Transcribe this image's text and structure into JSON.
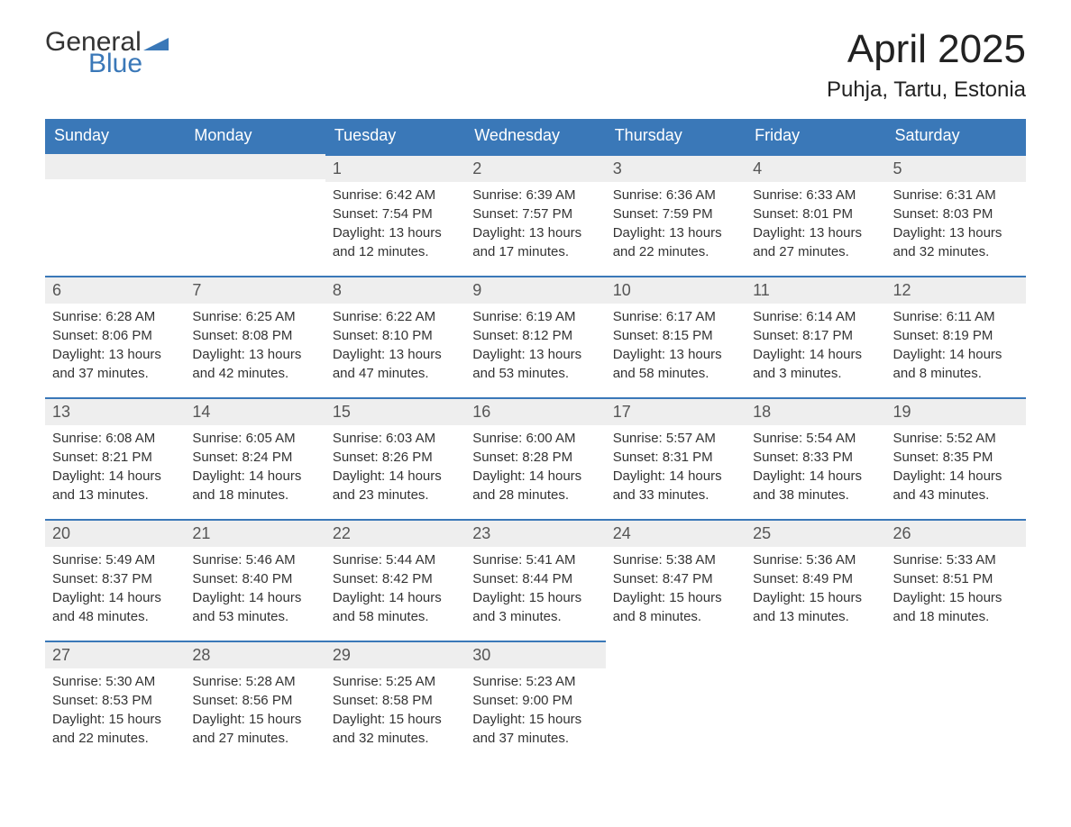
{
  "logo": {
    "text_general": "General",
    "text_blue": "Blue",
    "flag_color": "#3a78b8"
  },
  "title": {
    "month": "April 2025",
    "location": "Puhja, Tartu, Estonia"
  },
  "colors": {
    "header_bg": "#3a78b8",
    "header_text": "#ffffff",
    "daynum_bg": "#eeeeee",
    "daynum_border": "#3a78b8",
    "body_text": "#333333",
    "daynum_text": "#555555"
  },
  "day_headers": [
    "Sunday",
    "Monday",
    "Tuesday",
    "Wednesday",
    "Thursday",
    "Friday",
    "Saturday"
  ],
  "weeks": [
    [
      {
        "num": "",
        "sunrise": "",
        "sunset": "",
        "daylight1": "",
        "daylight2": ""
      },
      {
        "num": "",
        "sunrise": "",
        "sunset": "",
        "daylight1": "",
        "daylight2": ""
      },
      {
        "num": "1",
        "sunrise": "Sunrise: 6:42 AM",
        "sunset": "Sunset: 7:54 PM",
        "daylight1": "Daylight: 13 hours",
        "daylight2": "and 12 minutes."
      },
      {
        "num": "2",
        "sunrise": "Sunrise: 6:39 AM",
        "sunset": "Sunset: 7:57 PM",
        "daylight1": "Daylight: 13 hours",
        "daylight2": "and 17 minutes."
      },
      {
        "num": "3",
        "sunrise": "Sunrise: 6:36 AM",
        "sunset": "Sunset: 7:59 PM",
        "daylight1": "Daylight: 13 hours",
        "daylight2": "and 22 minutes."
      },
      {
        "num": "4",
        "sunrise": "Sunrise: 6:33 AM",
        "sunset": "Sunset: 8:01 PM",
        "daylight1": "Daylight: 13 hours",
        "daylight2": "and 27 minutes."
      },
      {
        "num": "5",
        "sunrise": "Sunrise: 6:31 AM",
        "sunset": "Sunset: 8:03 PM",
        "daylight1": "Daylight: 13 hours",
        "daylight2": "and 32 minutes."
      }
    ],
    [
      {
        "num": "6",
        "sunrise": "Sunrise: 6:28 AM",
        "sunset": "Sunset: 8:06 PM",
        "daylight1": "Daylight: 13 hours",
        "daylight2": "and 37 minutes."
      },
      {
        "num": "7",
        "sunrise": "Sunrise: 6:25 AM",
        "sunset": "Sunset: 8:08 PM",
        "daylight1": "Daylight: 13 hours",
        "daylight2": "and 42 minutes."
      },
      {
        "num": "8",
        "sunrise": "Sunrise: 6:22 AM",
        "sunset": "Sunset: 8:10 PM",
        "daylight1": "Daylight: 13 hours",
        "daylight2": "and 47 minutes."
      },
      {
        "num": "9",
        "sunrise": "Sunrise: 6:19 AM",
        "sunset": "Sunset: 8:12 PM",
        "daylight1": "Daylight: 13 hours",
        "daylight2": "and 53 minutes."
      },
      {
        "num": "10",
        "sunrise": "Sunrise: 6:17 AM",
        "sunset": "Sunset: 8:15 PM",
        "daylight1": "Daylight: 13 hours",
        "daylight2": "and 58 minutes."
      },
      {
        "num": "11",
        "sunrise": "Sunrise: 6:14 AM",
        "sunset": "Sunset: 8:17 PM",
        "daylight1": "Daylight: 14 hours",
        "daylight2": "and 3 minutes."
      },
      {
        "num": "12",
        "sunrise": "Sunrise: 6:11 AM",
        "sunset": "Sunset: 8:19 PM",
        "daylight1": "Daylight: 14 hours",
        "daylight2": "and 8 minutes."
      }
    ],
    [
      {
        "num": "13",
        "sunrise": "Sunrise: 6:08 AM",
        "sunset": "Sunset: 8:21 PM",
        "daylight1": "Daylight: 14 hours",
        "daylight2": "and 13 minutes."
      },
      {
        "num": "14",
        "sunrise": "Sunrise: 6:05 AM",
        "sunset": "Sunset: 8:24 PM",
        "daylight1": "Daylight: 14 hours",
        "daylight2": "and 18 minutes."
      },
      {
        "num": "15",
        "sunrise": "Sunrise: 6:03 AM",
        "sunset": "Sunset: 8:26 PM",
        "daylight1": "Daylight: 14 hours",
        "daylight2": "and 23 minutes."
      },
      {
        "num": "16",
        "sunrise": "Sunrise: 6:00 AM",
        "sunset": "Sunset: 8:28 PM",
        "daylight1": "Daylight: 14 hours",
        "daylight2": "and 28 minutes."
      },
      {
        "num": "17",
        "sunrise": "Sunrise: 5:57 AM",
        "sunset": "Sunset: 8:31 PM",
        "daylight1": "Daylight: 14 hours",
        "daylight2": "and 33 minutes."
      },
      {
        "num": "18",
        "sunrise": "Sunrise: 5:54 AM",
        "sunset": "Sunset: 8:33 PM",
        "daylight1": "Daylight: 14 hours",
        "daylight2": "and 38 minutes."
      },
      {
        "num": "19",
        "sunrise": "Sunrise: 5:52 AM",
        "sunset": "Sunset: 8:35 PM",
        "daylight1": "Daylight: 14 hours",
        "daylight2": "and 43 minutes."
      }
    ],
    [
      {
        "num": "20",
        "sunrise": "Sunrise: 5:49 AM",
        "sunset": "Sunset: 8:37 PM",
        "daylight1": "Daylight: 14 hours",
        "daylight2": "and 48 minutes."
      },
      {
        "num": "21",
        "sunrise": "Sunrise: 5:46 AM",
        "sunset": "Sunset: 8:40 PM",
        "daylight1": "Daylight: 14 hours",
        "daylight2": "and 53 minutes."
      },
      {
        "num": "22",
        "sunrise": "Sunrise: 5:44 AM",
        "sunset": "Sunset: 8:42 PM",
        "daylight1": "Daylight: 14 hours",
        "daylight2": "and 58 minutes."
      },
      {
        "num": "23",
        "sunrise": "Sunrise: 5:41 AM",
        "sunset": "Sunset: 8:44 PM",
        "daylight1": "Daylight: 15 hours",
        "daylight2": "and 3 minutes."
      },
      {
        "num": "24",
        "sunrise": "Sunrise: 5:38 AM",
        "sunset": "Sunset: 8:47 PM",
        "daylight1": "Daylight: 15 hours",
        "daylight2": "and 8 minutes."
      },
      {
        "num": "25",
        "sunrise": "Sunrise: 5:36 AM",
        "sunset": "Sunset: 8:49 PM",
        "daylight1": "Daylight: 15 hours",
        "daylight2": "and 13 minutes."
      },
      {
        "num": "26",
        "sunrise": "Sunrise: 5:33 AM",
        "sunset": "Sunset: 8:51 PM",
        "daylight1": "Daylight: 15 hours",
        "daylight2": "and 18 minutes."
      }
    ],
    [
      {
        "num": "27",
        "sunrise": "Sunrise: 5:30 AM",
        "sunset": "Sunset: 8:53 PM",
        "daylight1": "Daylight: 15 hours",
        "daylight2": "and 22 minutes."
      },
      {
        "num": "28",
        "sunrise": "Sunrise: 5:28 AM",
        "sunset": "Sunset: 8:56 PM",
        "daylight1": "Daylight: 15 hours",
        "daylight2": "and 27 minutes."
      },
      {
        "num": "29",
        "sunrise": "Sunrise: 5:25 AM",
        "sunset": "Sunset: 8:58 PM",
        "daylight1": "Daylight: 15 hours",
        "daylight2": "and 32 minutes."
      },
      {
        "num": "30",
        "sunrise": "Sunrise: 5:23 AM",
        "sunset": "Sunset: 9:00 PM",
        "daylight1": "Daylight: 15 hours",
        "daylight2": "and 37 minutes."
      },
      {
        "num": "",
        "sunrise": "",
        "sunset": "",
        "daylight1": "",
        "daylight2": ""
      },
      {
        "num": "",
        "sunrise": "",
        "sunset": "",
        "daylight1": "",
        "daylight2": ""
      },
      {
        "num": "",
        "sunrise": "",
        "sunset": "",
        "daylight1": "",
        "daylight2": ""
      }
    ]
  ]
}
